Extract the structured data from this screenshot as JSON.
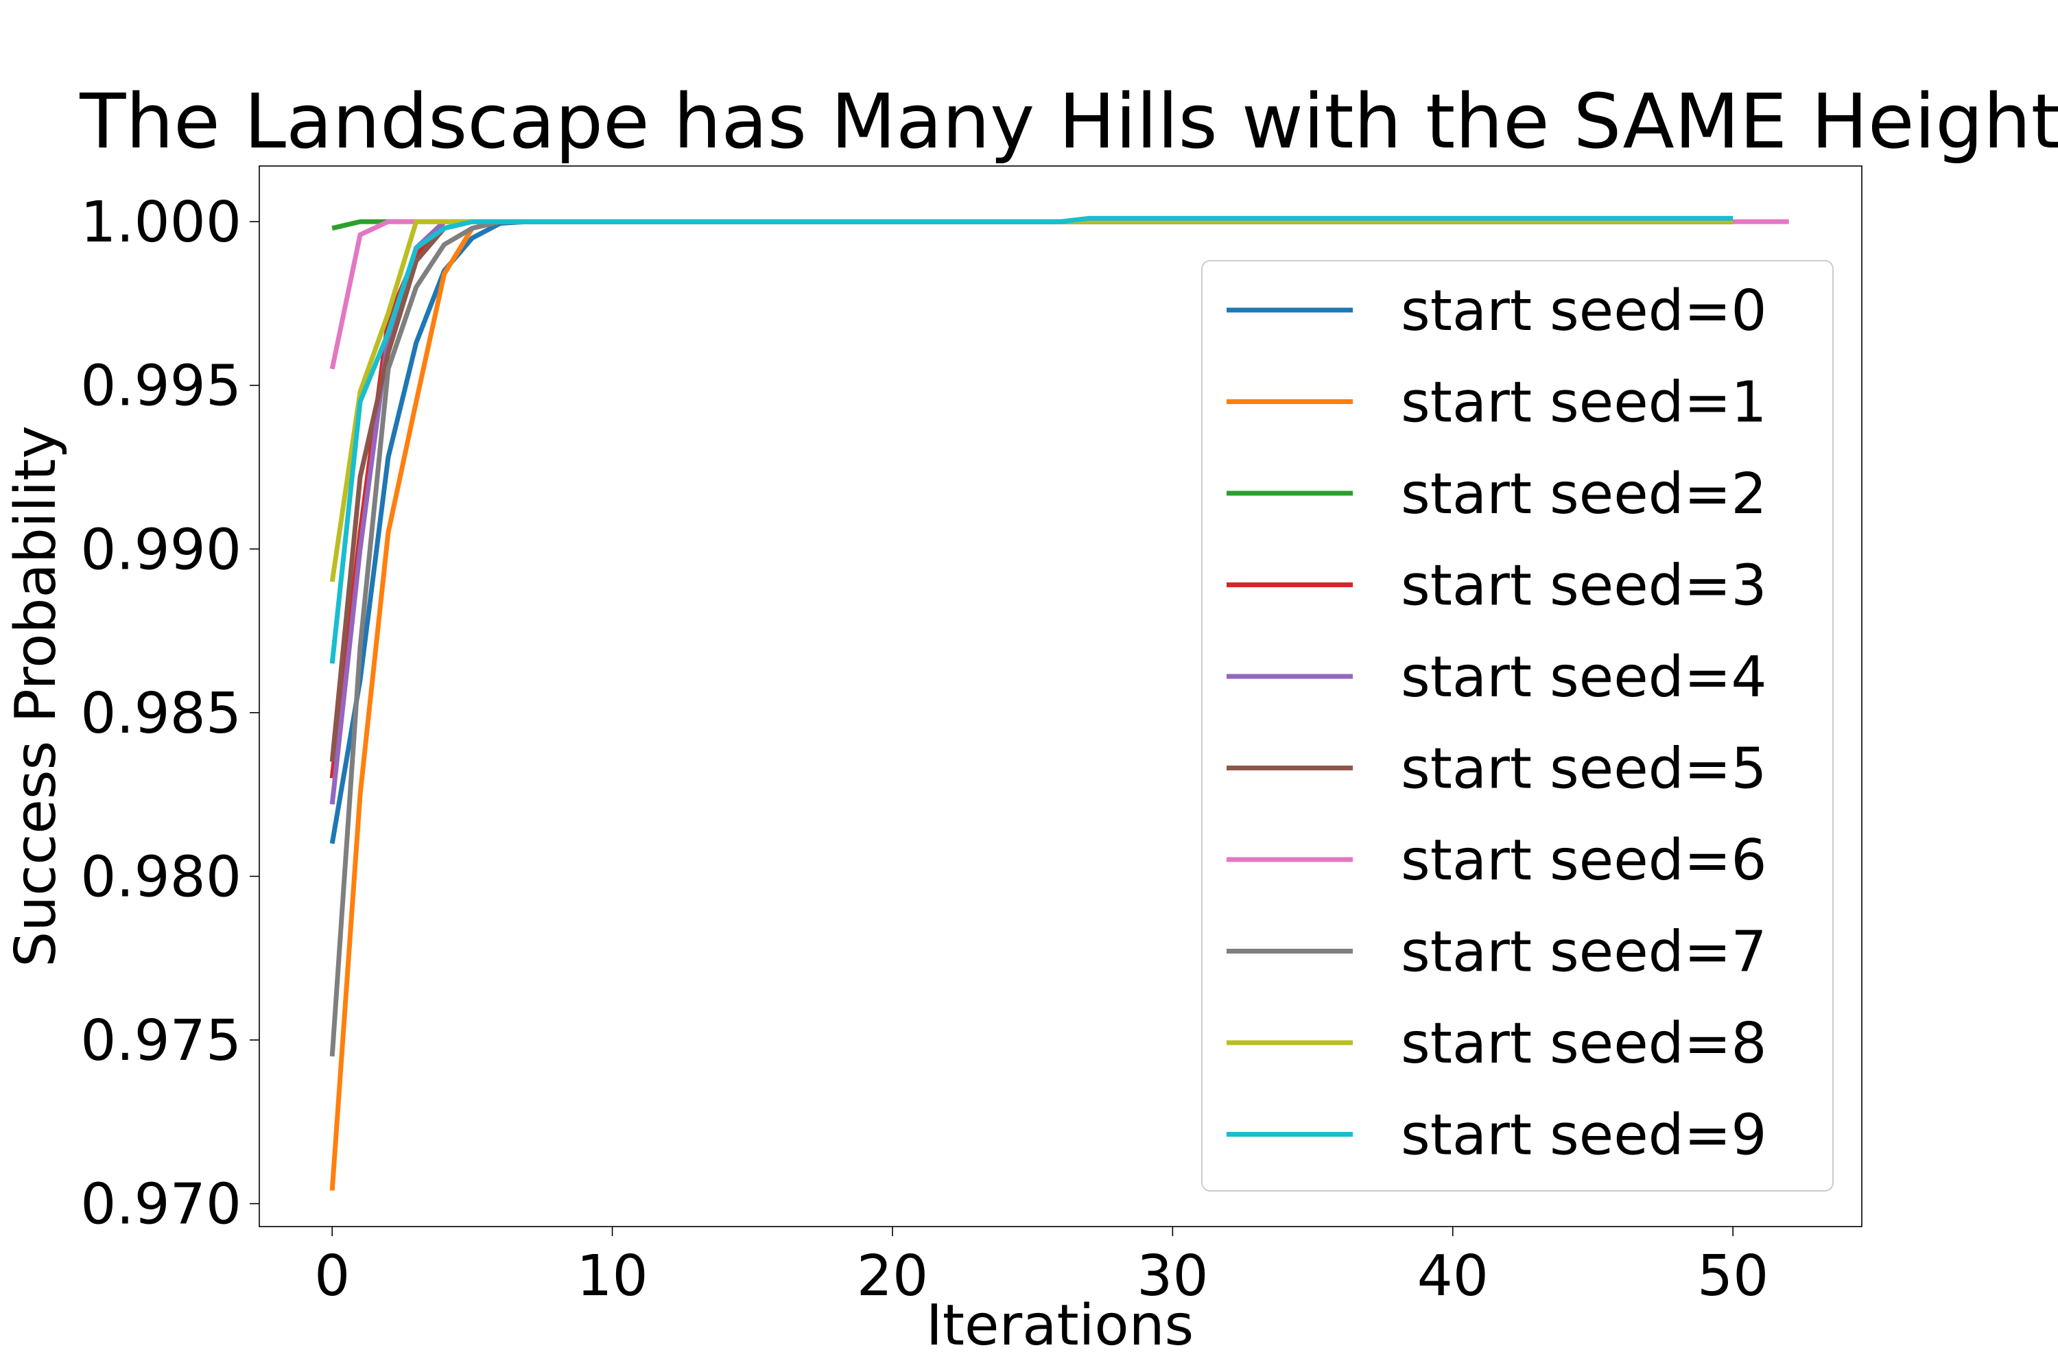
{
  "chart_data": {
    "type": "line",
    "title": "The Landscape has Many Hills with the SAME Height",
    "xlabel": "Iterations",
    "ylabel": "Success Probability",
    "xlim": [
      -2.6,
      54.6
    ],
    "ylim": [
      0.9693,
      1.0017
    ],
    "xticks": [
      0,
      10,
      20,
      30,
      40,
      50
    ],
    "xtick_labels": [
      "0",
      "10",
      "20",
      "30",
      "40",
      "50"
    ],
    "yticks": [
      0.97,
      0.975,
      0.98,
      0.985,
      0.99,
      0.995,
      1.0
    ],
    "ytick_labels": [
      "0.970",
      "0.975",
      "0.980",
      "0.985",
      "0.990",
      "0.995",
      "1.000"
    ],
    "grid": false,
    "legend_position": "right",
    "series": [
      {
        "name": "start seed=0",
        "color": "#1f77b4",
        "x": [
          0,
          1,
          2,
          3,
          4,
          5,
          6,
          7,
          50
        ],
        "y": [
          0.981,
          0.986,
          0.9928,
          0.9963,
          0.9985,
          0.9995,
          0.99995,
          1.0,
          1.0
        ]
      },
      {
        "name": "start seed=1",
        "color": "#ff7f0e",
        "x": [
          0,
          1,
          2,
          3,
          4,
          5,
          6,
          50
        ],
        "y": [
          0.9704,
          0.9825,
          0.9905,
          0.9945,
          0.9984,
          0.9998,
          1.0,
          1.0
        ]
      },
      {
        "name": "start seed=2",
        "color": "#2ca02c",
        "x": [
          0,
          1,
          2,
          50
        ],
        "y": [
          0.9998,
          1.0,
          1.0,
          1.0
        ]
      },
      {
        "name": "start seed=3",
        "color": "#d62728",
        "x": [
          0,
          1,
          2,
          3,
          4,
          5,
          50
        ],
        "y": [
          0.983,
          0.9905,
          0.997,
          0.999,
          1.0,
          1.0,
          1.0
        ]
      },
      {
        "name": "start seed=4",
        "color": "#9467bd",
        "x": [
          0,
          1,
          2,
          3,
          4,
          5,
          50
        ],
        "y": [
          0.9822,
          0.99,
          0.9965,
          0.9992,
          1.0,
          1.0,
          1.0
        ]
      },
      {
        "name": "start seed=5",
        "color": "#8c564b",
        "x": [
          0,
          1,
          2,
          3,
          4,
          5,
          50
        ],
        "y": [
          0.9835,
          0.9922,
          0.996,
          0.9988,
          0.9998,
          1.0,
          1.0
        ]
      },
      {
        "name": "start seed=6",
        "color": "#e377c2",
        "x": [
          0,
          1,
          2,
          3,
          52
        ],
        "y": [
          0.9955,
          0.9996,
          1.0,
          1.0,
          1.0
        ]
      },
      {
        "name": "start seed=7",
        "color": "#7f7f7f",
        "x": [
          0,
          1,
          2,
          3,
          4,
          5,
          6,
          50
        ],
        "y": [
          0.9745,
          0.987,
          0.9955,
          0.998,
          0.9993,
          0.9998,
          1.0,
          1.0
        ]
      },
      {
        "name": "start seed=8",
        "color": "#bcbd22",
        "x": [
          0,
          1,
          2,
          3,
          4,
          50
        ],
        "y": [
          0.989,
          0.9948,
          0.9972,
          1.0,
          1.0,
          1.0
        ]
      },
      {
        "name": "start seed=9",
        "color": "#17becf",
        "x": [
          0,
          1,
          2,
          3,
          4,
          5,
          26,
          27,
          50
        ],
        "y": [
          0.9865,
          0.9945,
          0.9966,
          0.9992,
          0.9998,
          1.0,
          1.0,
          1.0001,
          1.0001
        ]
      }
    ]
  }
}
